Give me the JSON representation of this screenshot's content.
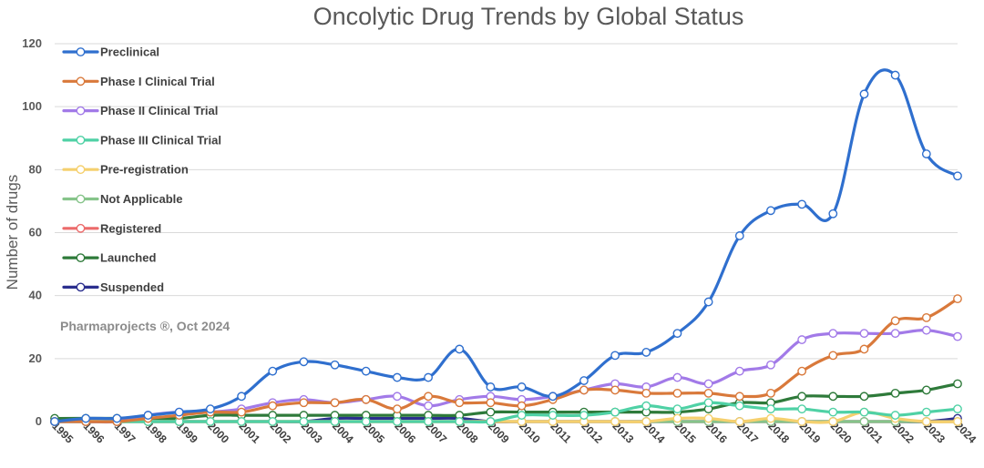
{
  "chart_data": {
    "type": "line",
    "title": "Oncolytic Drug Trends by Global Status",
    "xlabel": "",
    "ylabel": "Number of drugs",
    "ylim": [
      0,
      120
    ],
    "yticks": [
      "0",
      "20",
      "40",
      "60",
      "80",
      "100",
      "120"
    ],
    "grid": true,
    "legend_position": "top-left",
    "annotation": "Pharmaprojects ®, Oct 2024",
    "categories": [
      "1995",
      "1996",
      "1997",
      "1998",
      "1999",
      "2000",
      "2001",
      "2002",
      "2003",
      "2004",
      "2005",
      "2006",
      "2007",
      "2008",
      "2009",
      "2010",
      "2011",
      "2012",
      "2013",
      "2014",
      "2015",
      "2016",
      "2017",
      "2018",
      "2019",
      "2020",
      "2021",
      "2022",
      "2023",
      "2024"
    ],
    "series": [
      {
        "name": "Preclinical",
        "color": "#2f6fce",
        "values": [
          0,
          1,
          1,
          2,
          3,
          4,
          8,
          16,
          19,
          18,
          16,
          14,
          14,
          23,
          11,
          11,
          8,
          13,
          21,
          22,
          28,
          38,
          59,
          67,
          69,
          66,
          104,
          110,
          85,
          78
        ]
      },
      {
        "name": "Phase I Clinical Trial",
        "color": "#d9793b",
        "values": [
          0,
          0,
          0,
          1,
          2,
          3,
          3,
          5,
          6,
          6,
          7,
          4,
          8,
          6,
          6,
          5,
          7,
          10,
          10,
          9,
          9,
          9,
          8,
          9,
          16,
          21,
          23,
          32,
          33,
          39
        ]
      },
      {
        "name": "Phase II Clinical Trial",
        "color": "#a27ae8",
        "values": [
          0,
          0,
          0,
          2,
          3,
          3,
          4,
          6,
          7,
          6,
          7,
          8,
          5,
          7,
          8,
          7,
          8,
          10,
          12,
          11,
          14,
          12,
          16,
          18,
          26,
          28,
          28,
          28,
          29,
          27
        ]
      },
      {
        "name": "Phase III Clinical Trial",
        "color": "#4fd1a5",
        "values": [
          0,
          0,
          0,
          0,
          0,
          0,
          0,
          0,
          0,
          0,
          0,
          0,
          0,
          0,
          0,
          2,
          2,
          2,
          3,
          5,
          4,
          6,
          5,
          4,
          4,
          3,
          3,
          2,
          3,
          4
        ]
      },
      {
        "name": "Pre-registration",
        "color": "#f5d06e",
        "values": [
          0,
          0,
          0,
          0,
          0,
          0,
          0,
          0,
          0,
          0,
          0,
          0,
          0,
          0,
          0,
          0,
          0,
          0,
          0,
          0,
          1,
          1,
          0,
          1,
          0,
          0,
          3,
          1,
          0,
          0
        ]
      },
      {
        "name": "Not Applicable",
        "color": "#86c48a",
        "values": [
          0,
          0,
          0,
          0,
          0,
          0,
          0,
          0,
          0,
          0,
          0,
          0,
          0,
          0,
          0,
          0,
          0,
          0,
          0,
          0,
          0,
          0,
          0,
          0,
          0,
          0,
          0,
          0,
          0,
          0
        ]
      },
      {
        "name": "Registered",
        "color": "#ec6b6b",
        "values": [
          0,
          0,
          0,
          0,
          0,
          0,
          0,
          0,
          0,
          0,
          0,
          0,
          0,
          0,
          0,
          0,
          0,
          0,
          0,
          0,
          0,
          0,
          0,
          0,
          0,
          0,
          0,
          0,
          0,
          0
        ]
      },
      {
        "name": "Launched",
        "color": "#2e7a3a",
        "values": [
          1,
          1,
          1,
          1,
          1,
          2,
          2,
          2,
          2,
          2,
          2,
          2,
          2,
          2,
          3,
          3,
          3,
          3,
          3,
          3,
          3,
          4,
          6,
          6,
          8,
          8,
          8,
          9,
          10,
          12
        ]
      },
      {
        "name": "Suspended",
        "color": "#2b2f8e",
        "values": [
          0,
          0,
          0,
          0,
          0,
          0,
          0,
          0,
          0,
          1,
          1,
          1,
          1,
          1,
          0,
          0,
          0,
          0,
          0,
          0,
          0,
          0,
          0,
          0,
          0,
          0,
          0,
          0,
          0,
          1
        ]
      }
    ]
  }
}
